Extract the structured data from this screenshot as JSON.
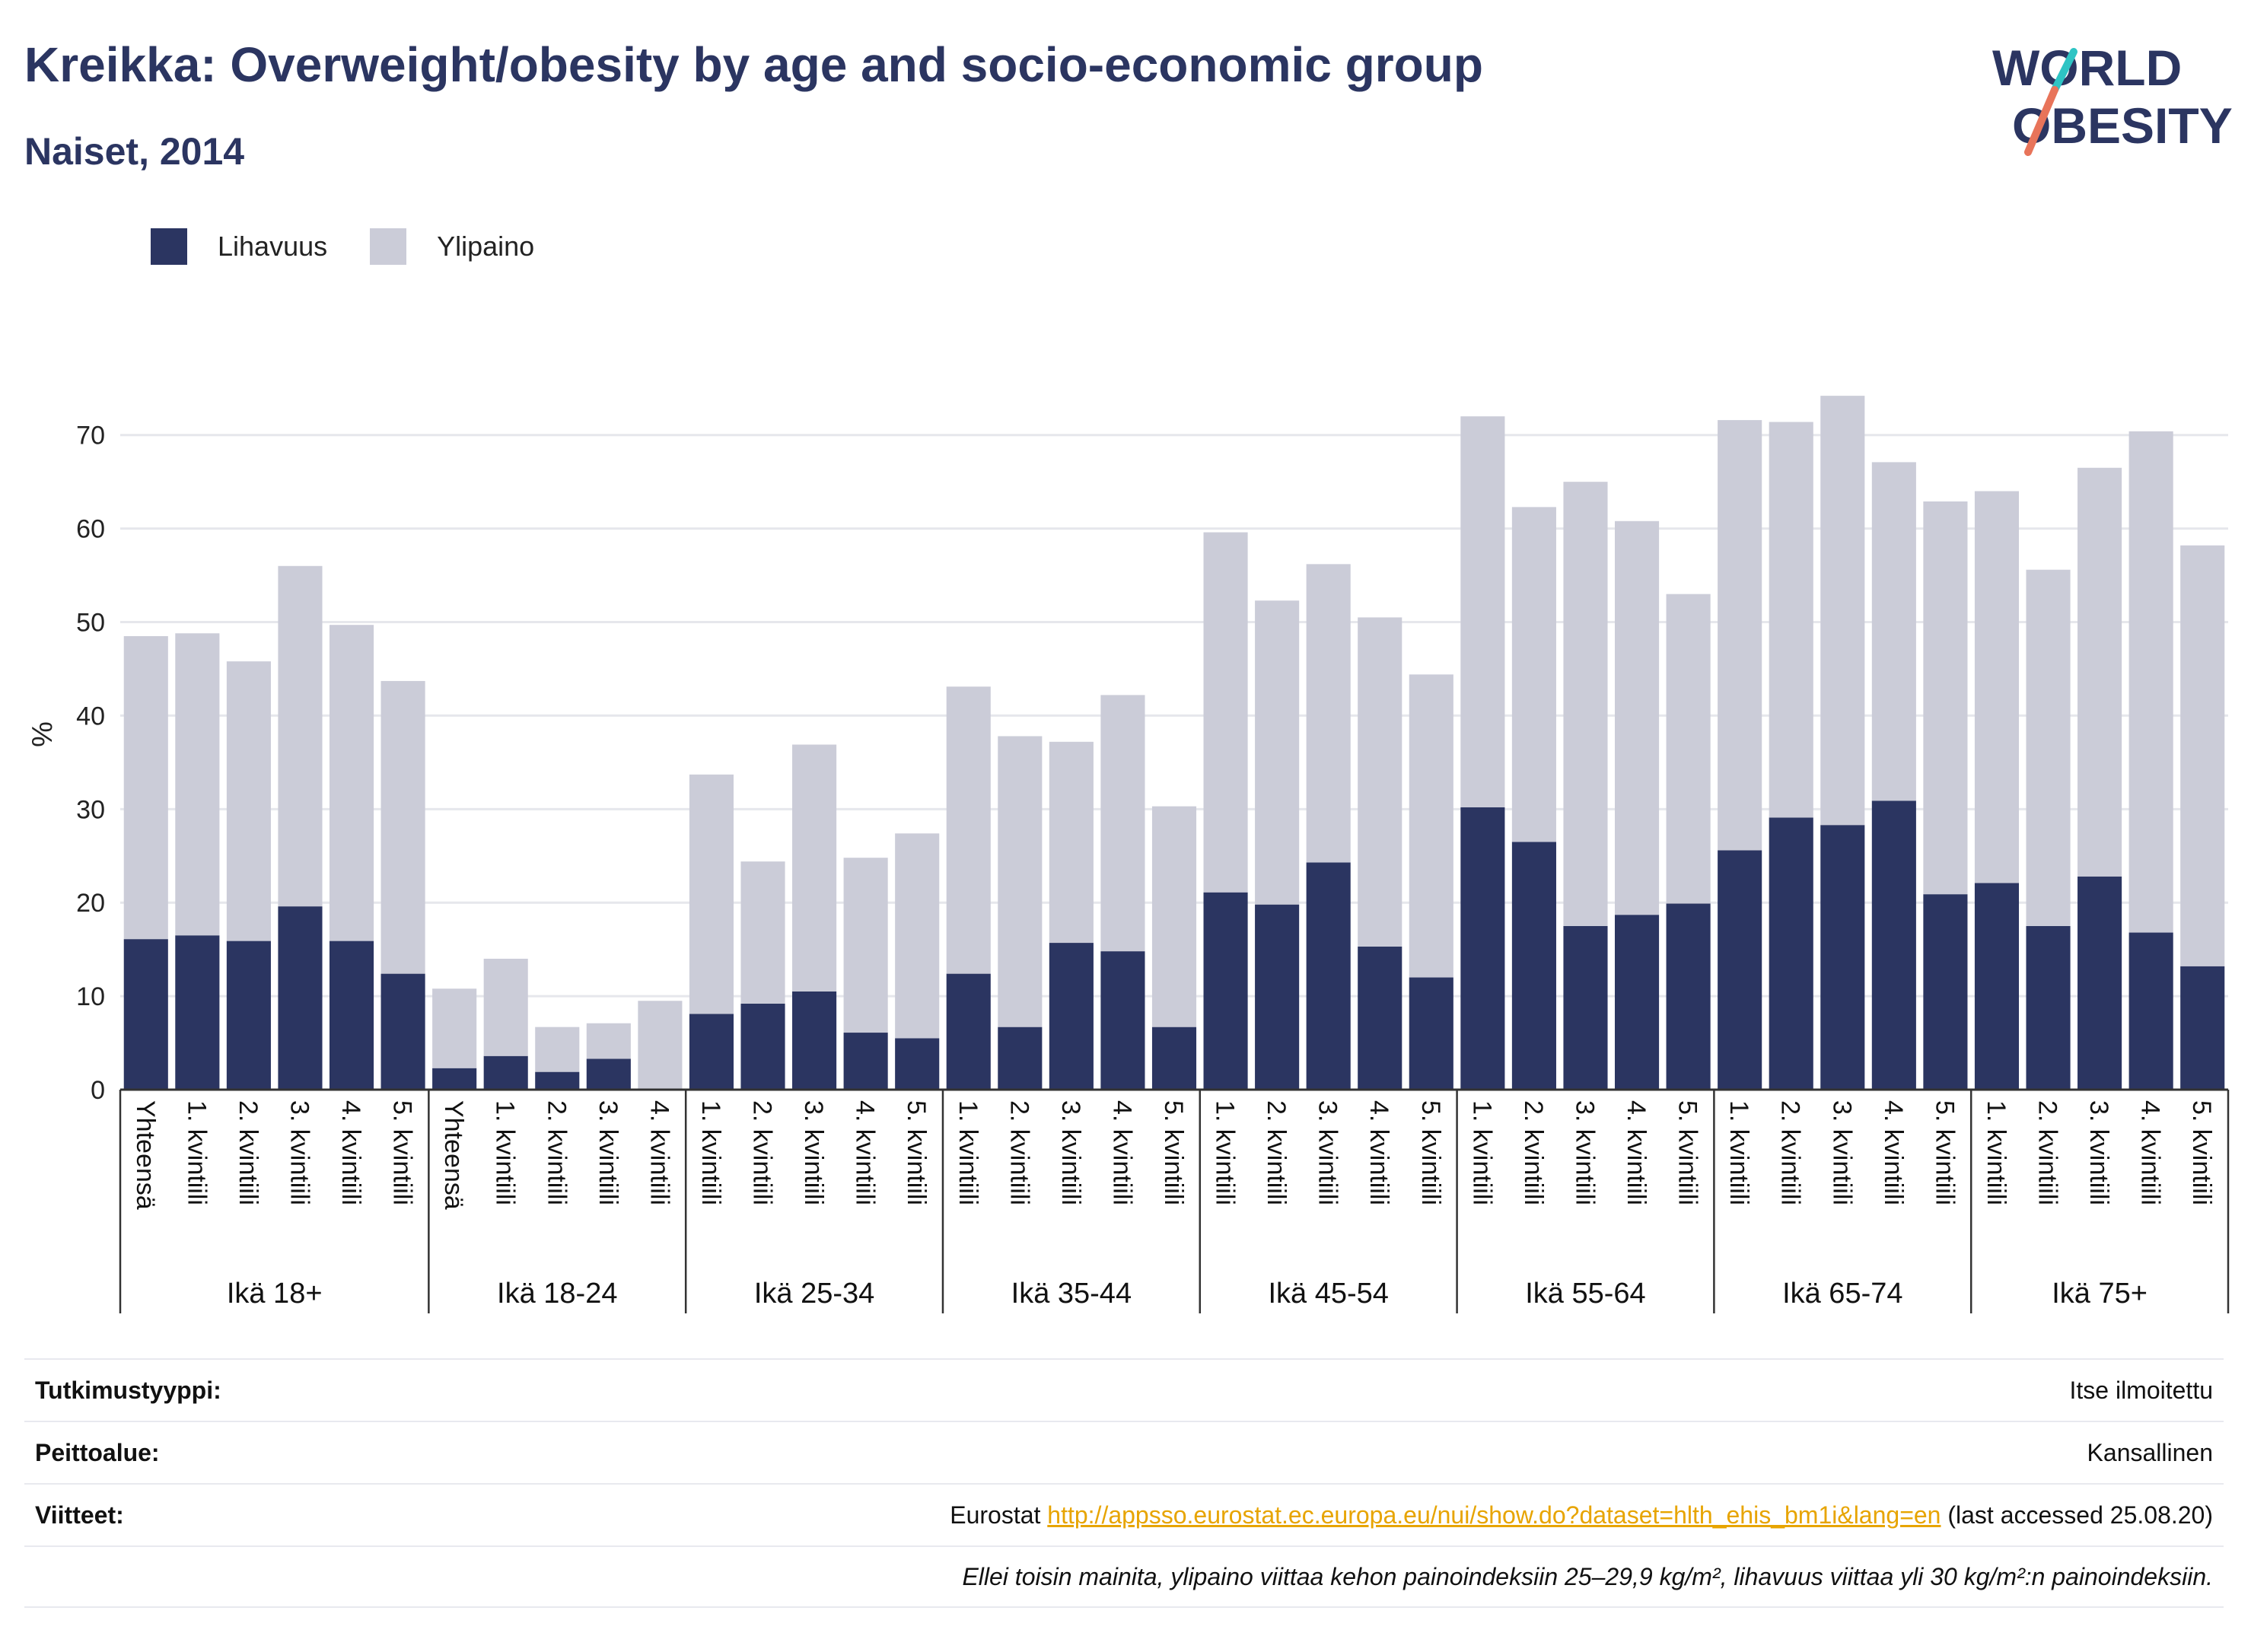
{
  "header": {
    "title": "Kreikka: Overweight/obesity by age and socio-economic group",
    "subtitle": "Naiset, 2014"
  },
  "logo": {
    "line1": "WORLD",
    "line2": "OBESITY",
    "accent_colors": [
      "#2ec4c4",
      "#e8745a"
    ]
  },
  "legend": [
    {
      "label": "Lihavuus",
      "color": "#2b3561"
    },
    {
      "label": "Ylipaino",
      "color": "#cbccd8"
    }
  ],
  "chart_data": {
    "type": "bar",
    "stacked": true,
    "ylabel": "%",
    "ylim": [
      0,
      76
    ],
    "yticks": [
      0,
      10,
      20,
      30,
      40,
      50,
      60,
      70
    ],
    "grid": true,
    "legend_position": "top-left",
    "groups": [
      {
        "label": "Ikä 18+",
        "categories": [
          "Yhteensä",
          "1. kvintiili",
          "2. kvintiili",
          "3. kvintiili",
          "4. kvintiili",
          "5. kvintiili"
        ]
      },
      {
        "label": "Ikä 18-24",
        "categories": [
          "Yhteensä",
          "1. kvintiili",
          "2. kvintiili",
          "3. kvintiili",
          "4. kvintiili"
        ]
      },
      {
        "label": "Ikä 25-34",
        "categories": [
          "1. kvintiili",
          "2. kvintiili",
          "3. kvintiili",
          "4. kvintiili",
          "5. kvintiili"
        ]
      },
      {
        "label": "Ikä 35-44",
        "categories": [
          "1. kvintiili",
          "2. kvintiili",
          "3. kvintiili",
          "4. kvintiili",
          "5. kvintiili"
        ]
      },
      {
        "label": "Ikä 45-54",
        "categories": [
          "1. kvintiili",
          "2. kvintiili",
          "3. kvintiili",
          "4. kvintiili",
          "5. kvintiili"
        ]
      },
      {
        "label": "Ikä 55-64",
        "categories": [
          "1. kvintiili",
          "2. kvintiili",
          "3. kvintiili",
          "4. kvintiili",
          "5. kvintiili"
        ]
      },
      {
        "label": "Ikä 65-74",
        "categories": [
          "1. kvintiili",
          "2. kvintiili",
          "3. kvintiili",
          "4. kvintiili",
          "5. kvintiili"
        ]
      },
      {
        "label": "Ikä 75+",
        "categories": [
          "1. kvintiili",
          "2. kvintiili",
          "3. kvintiili",
          "4. kvintiili",
          "5. kvintiili"
        ]
      }
    ],
    "series": [
      {
        "name": "Lihavuus",
        "color": "#2b3561",
        "values": [
          16.1,
          16.5,
          15.9,
          19.6,
          15.9,
          12.4,
          2.3,
          3.6,
          1.9,
          3.3,
          0,
          8.1,
          9.2,
          10.5,
          6.1,
          5.5,
          12.4,
          6.7,
          15.7,
          14.8,
          6.7,
          21.1,
          19.8,
          24.3,
          15.3,
          12.0,
          30.2,
          26.5,
          17.5,
          18.7,
          19.9,
          25.6,
          29.1,
          28.3,
          30.9,
          20.9,
          22.1,
          17.5,
          22.8,
          16.8,
          13.2
        ]
      },
      {
        "name": "Ylipaino",
        "color": "#cbccd8",
        "values": [
          32.4,
          32.3,
          29.9,
          36.4,
          33.8,
          31.3,
          8.5,
          10.4,
          4.8,
          3.8,
          9.5,
          25.6,
          15.2,
          26.4,
          18.7,
          21.9,
          30.7,
          31.1,
          21.5,
          27.4,
          23.6,
          38.5,
          32.5,
          31.9,
          35.2,
          32.4,
          41.8,
          35.8,
          47.5,
          42.1,
          33.1,
          46.0,
          42.3,
          45.9,
          36.2,
          42.0,
          41.9,
          38.1,
          43.7,
          53.6,
          45.0
        ]
      }
    ]
  },
  "info_table": {
    "rows": [
      {
        "label": "Tutkimustyyppi:",
        "value": "Itse ilmoitettu"
      },
      {
        "label": "Peittoalue:",
        "value": "Kansallinen"
      }
    ],
    "references": {
      "label": "Viitteet:",
      "prefix": "Eurostat",
      "link": "http://appsso.eurostat.ec.europa.eu/nui/show.do?dataset=hlth_ehis_bm1i&lang=en",
      "suffix": "(last accessed 25.08.20)"
    },
    "note": "Ellei toisin mainita, ylipaino viittaa kehon painoindeksiin 25–29,9 kg/m², lihavuus viittaa yli 30 kg/m²:n painoindeksiin."
  }
}
